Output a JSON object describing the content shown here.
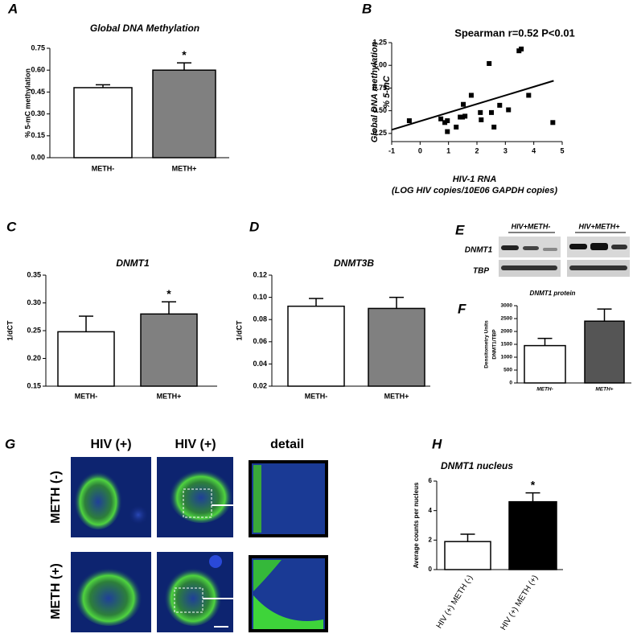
{
  "chart_data": [
    {
      "type": "bar",
      "panel": "A",
      "title": "Global DNA Methylation",
      "ylabel": [
        "% 5-mC methylation"
      ],
      "categories": [
        "METH-",
        "METH+"
      ],
      "values": [
        0.48,
        0.6
      ],
      "errors": [
        0.02,
        0.05
      ],
      "colors": [
        "#ffffff",
        "#808080"
      ],
      "significance": {
        "label": "*",
        "category": "METH+"
      },
      "ylim": [
        0,
        0.75
      ],
      "yticks": [
        {
          "value": 0,
          "label": "0.00"
        },
        {
          "value": 0.15,
          "label": "0.15"
        },
        {
          "value": 0.3,
          "label": "0.30"
        },
        {
          "value": 0.45,
          "label": "0.45"
        },
        {
          "value": 0.6,
          "label": "0.60"
        },
        {
          "value": 0.75,
          "label": "0.75"
        }
      ]
    },
    {
      "type": "scatter",
      "panel": "B",
      "title": "Spearman r=0.52 P<0.01",
      "ylabel": [
        "Global  DNA  methylation",
        "% 5-mC"
      ],
      "xlabel": [
        "HIV-1 RNA",
        "(LOG HIV copies/10E06 GAPDH copies)"
      ],
      "x": [
        -0.38,
        0.73,
        0.87,
        0.96,
        0.96,
        1.27,
        1.41,
        1.52,
        1.49,
        1.58,
        1.8,
        2.12,
        2.15,
        2.43,
        2.51,
        2.6,
        2.8,
        3.11,
        3.48,
        3.56,
        3.82,
        4.67
      ],
      "y": [
        0.39,
        0.41,
        0.37,
        0.27,
        0.39,
        0.32,
        0.43,
        0.57,
        0.43,
        0.44,
        0.67,
        0.48,
        0.4,
        1.02,
        0.48,
        0.32,
        0.56,
        0.51,
        1.16,
        1.18,
        0.67,
        0.37
      ],
      "color": "#000000",
      "fit": {
        "x": [
          -1,
          4.7
        ],
        "y": [
          0.29,
          0.83
        ]
      },
      "xlim": [
        -1,
        5
      ],
      "xticks": [
        -1,
        0,
        1,
        2,
        3,
        4,
        5
      ],
      "ylim": [
        0.16,
        1.25
      ],
      "yticks": [
        {
          "value": 0.25,
          "label": "0.25"
        },
        {
          "value": 0.5,
          "label": "0.50"
        },
        {
          "value": 0.75,
          "label": "0.75"
        },
        {
          "value": 1,
          "label": "1.00"
        },
        {
          "value": 1.25,
          "label": "1.25"
        }
      ]
    },
    {
      "type": "bar",
      "panel": "C",
      "title": "DNMT1",
      "ylabel": [
        "1/dCT"
      ],
      "categories": [
        "METH-",
        "METH+"
      ],
      "values": [
        0.248,
        0.28
      ],
      "errors": [
        0.028,
        0.022
      ],
      "colors": [
        "#ffffff",
        "#808080"
      ],
      "significance": {
        "label": "*",
        "category": "METH+"
      },
      "ylim": [
        0.15,
        0.35
      ],
      "yticks": [
        0.15,
        {
          "value": 0.2,
          "label": "0.20"
        },
        0.25,
        {
          "value": 0.3,
          "label": "0.30"
        },
        0.35
      ]
    },
    {
      "type": "bar",
      "panel": "D",
      "title": "DNMT3B",
      "ylabel": [
        "1/dCT"
      ],
      "categories": [
        "METH-",
        "METH+"
      ],
      "values": [
        0.092,
        0.09
      ],
      "errors": [
        0.007,
        0.01
      ],
      "colors": [
        "#ffffff",
        "#808080"
      ],
      "ylim": [
        0.02,
        0.12
      ],
      "yticks": [
        0.02,
        0.04,
        0.06,
        0.08,
        {
          "value": 0.1,
          "label": "0.10"
        },
        0.12
      ]
    },
    {
      "type": "bar",
      "panel": "F",
      "title": "DNMT1 protein",
      "ylabel": [
        "Densitometry Units",
        "DNMT1/TBP"
      ],
      "categories": [
        "METH-",
        "METH+"
      ],
      "values": [
        1450,
        2400
      ],
      "errors": [
        280,
        470
      ],
      "colors": [
        "#ffffff",
        "#555555"
      ],
      "ylim": [
        0,
        3000
      ],
      "yticks": [
        0,
        500,
        1000,
        1500,
        2000,
        2500,
        3000
      ]
    },
    {
      "type": "bar",
      "panel": "H",
      "title": "DNMT1 nucleus",
      "ylabel": [
        "Average counts per nucleus"
      ],
      "categories": [
        "HIV (+) METH (-)",
        "HIV (+) METH (+)"
      ],
      "values": [
        1.9,
        4.6
      ],
      "errors": [
        0.5,
        0.6
      ],
      "colors": [
        "#ffffff",
        "#000000"
      ],
      "significance": {
        "label": "*",
        "category": "HIV (+) METH (+)"
      },
      "ylim": [
        0,
        6
      ],
      "yticks": [
        0,
        2,
        4,
        6
      ]
    }
  ],
  "blot": {
    "panel": "E",
    "groups": [
      "HIV+METH-",
      "HIV+METH+"
    ],
    "rows": [
      "DNMT1",
      "TBP"
    ]
  },
  "images": {
    "panel": "G",
    "columns": [
      "HIV (+)",
      "HIV (+)",
      "detail"
    ],
    "rows": [
      "METH (-)",
      "METH (+)"
    ]
  }
}
